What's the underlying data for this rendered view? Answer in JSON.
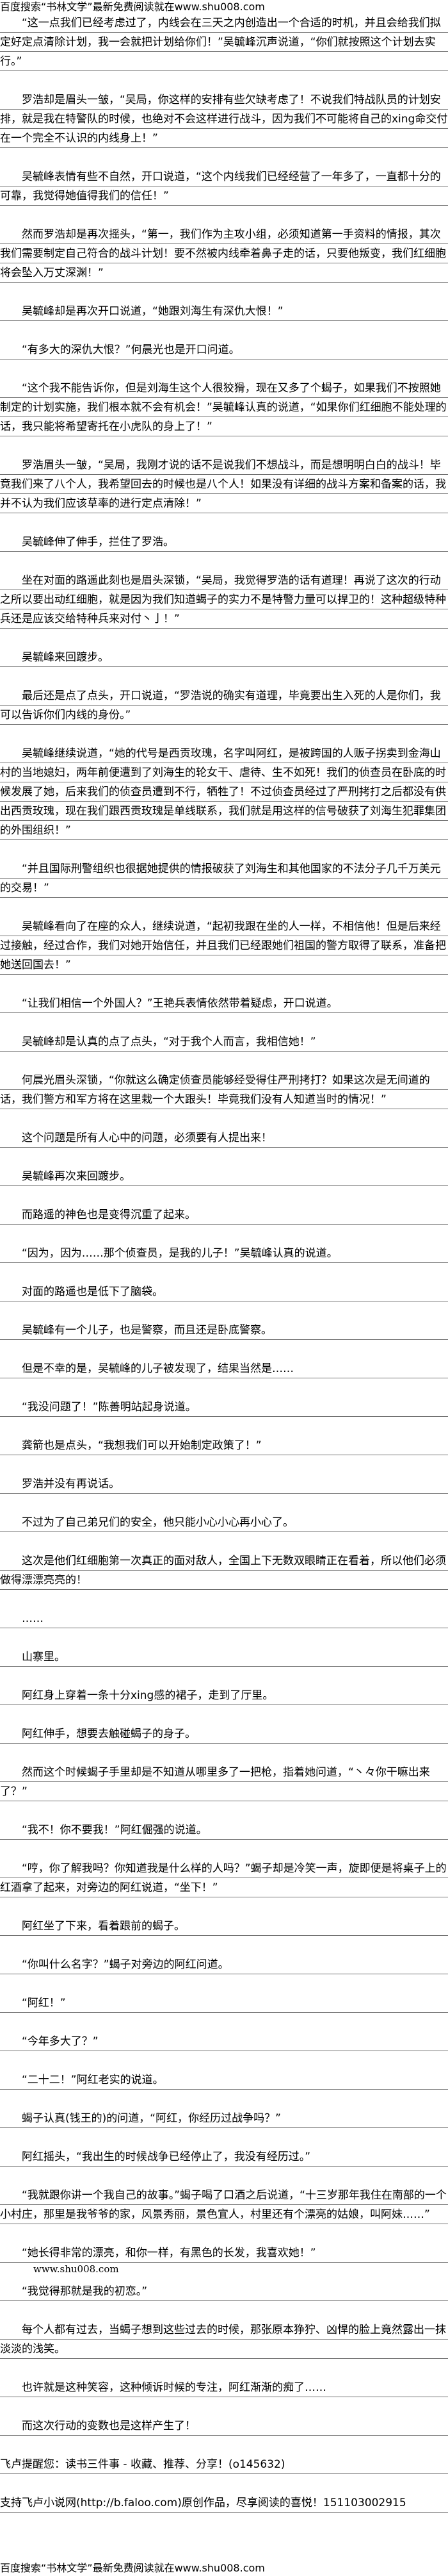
{
  "header": {
    "text": "百度搜索“书林文学”最新免费阅读就在www.shu008.com"
  },
  "paragraphs": [
    "“这一点我们已经考虑过了，内线会在三天之内创造出一个合适的时机，并且会给我们拟定好定点清除计划，我一会就把计划给你们！”吴毓峰沉声说道，“你们就按照这个计划去实行。”",
    "罗浩却是眉头一皱，“吴局，你这样的安排有些欠缺考虑了！不说我们特战队员的计划安排，就是我在特警队的时候，也绝对不会这样进行战斗，因为我们不可能将自己的xing命交付在一个完全不认识的内线身上！”",
    "吴毓峰表情有些不自然，开口说道，“这个内线我们已经经营了一年多了，一直都十分的可靠，我觉得她值得我们的信任！”",
    "然而罗浩却是再次摇头，“第一，我们作为主攻小组，必须知道第一手资料的情报，其次我们需要制定自己符合的战斗计划！要不然被内线牵着鼻子走的话，只要他叛变，我们红细胞将会坠入万丈深渊！”",
    "吴毓峰却是再次开口说道，“她跟刘海生有深仇大恨！”",
    "“有多大的深仇大恨？”何晨光也是开口问道。",
    "“这个我不能告诉你，但是刘海生这个人很狡猾，现在又多了个蝎子，如果我们不按照她制定的计划实施，我们根本就不会有机会！”吴毓峰认真的说道，“如果你们红细胞不能处理的话，我只能将希望寄托在小虎队的身上了！”",
    "罗浩眉头一皱，“吴局，我刚才说的话不是说我们不想战斗，而是想明明白白的战斗！毕竟我们来了八个人，我希望回去的时候也是八个人！如果没有详细的战斗方案和备案的话，我并不认为我们应该草率的进行定点清除！”",
    "吴毓峰伸了伸手，拦住了罗浩。",
    "坐在对面的路遥此刻也是眉头深锁，“吴局，我觉得罗浩的话有道理！再说了这次的行动之所以要出动红细胞，就是因为我们知道蝎子的实力不是特警力量可以捍卫的！这种超级特种兵还是应该交给特种兵来对付丶亅！”",
    "吴毓峰来回踱步。",
    "最后还是点了点头，开口说道，“罗浩说的确实有道理，毕竟要出生入死的人是你们，我可以告诉你们内线的身份。”",
    "吴毓峰继续说道，“她的代号是西贡玫瑰，名字叫阿红，是被跨国的人贩子拐卖到金海山村的当地媳妇，两年前便遭到了刘海生的轮女干、虐待、生不如死！我们的侦查员在卧底的时候发展了她，后来我们的侦查员遭到不行，牺牲了！不过侦查员经过了严刑拷打之后都没有供出西贡玫瑰，现在我们跟西贡玫瑰是单线联系，我们就是用这样的信号破获了刘海生犯罪集团的外围组织！”",
    "“并且国际刑警组织也很据她提供的情报破获了刘海生和其他国家的不法分子几千万美元的交易！”",
    "吴毓峰看向了在座的众人，继续说道，“起初我跟在坐的人一样，不相信他！但是后来经过接触，经过合作，我们对她开始信任，并且我们已经跟她们祖国的警方取得了联系，准备把她送回国去！”",
    "“让我们相信一个外国人？”王艳兵表情依然带着疑虑，开口说道。",
    "吴毓峰却是认真的点了点头，“对于我个人而言，我相信她！”",
    "何晨光眉头深锁，“你就这么确定侦查员能够经受得住严刑拷打？如果这次是无间道的话，我们警方和军方将在这里栽一个大跟头！毕竟我们没有人知道当时的情况！”",
    "这个问题是所有人心中的问题，必须要有人提出来！",
    "吴毓峰再次来回踱步。",
    "而路遥的神色也是变得沉重了起来。",
    "“因为，因为……那个侦查员，是我的儿子！”吴毓峰认真的说道。",
    "对面的路遥也是低下了脑袋。",
    "吴毓峰有一个儿子，也是警察，而且还是卧底警察。",
    "但是不幸的是，吴毓峰的儿子被发现了，结果当然是……",
    "“我没问题了！”陈善明站起身说道。",
    "龚箭也是点头，“我想我们可以开始制定政策了！”",
    "罗浩并没有再说话。",
    "不过为了自己弟兄们的安全，他只能小心小心再小心了。",
    "这次是他们红细胞第一次真正的面对敌人，全国上下无数双眼睛正在看着，所以他们必须做得漂漂亮亮的！",
    "……",
    "山寨里。",
    "阿红身上穿着一条十分xing感的裙子，走到了厅里。",
    "阿红伸手，想要去触碰蝎子的身子。",
    "然而这个时候蝎子手里却是不知道从哪里多了一把枪，指着她问道，“丶々你干嘛出来了？”",
    "“我不！你不要我！”阿红倔强的说道。",
    "“哼，你了解我吗？你知道我是什么样的人吗？”蝎子却是冷笑一声，旋即便是将桌子上的红酒拿了起来，对旁边的阿红说道，“坐下！”",
    "阿红坐了下来，看着跟前的蝎子。",
    "“你叫什么名字？”蝎子对旁边的阿红问道。",
    "“阿红！”",
    "“今年多大了？”",
    "“二十二！”阿红老实的说道。",
    "蝎子认真(钱王的)的问道，“阿红，你经历过战争吗？”",
    "阿红摇头，“我出生的时候战争已经停止了，我没有经历过。”",
    "“我就跟你讲一个我自己的故事。”蝎子喝了口酒之后说道，“十三岁那年我住在南部的一个小村庄，那里是我爷爷的家，风景秀丽，景色宜人，村里还有个漂亮的姑娘，叫阿妹……”",
    "“她长得非常的漂亮，和你一样，有黑色的长发，我喜欢她！”",
    "“我觉得那就是我的初恋。”",
    "每个人都有过去，当蝎子想到这些过去的时候，那张原本狰狞、凶悍的脸上竟然露出一抹淡淡的浅笑。",
    "也许就是这种笑容，这种倾诉时候的专注，阿红渐渐的痴了……",
    "而这次行动的变数也是这样产生了！"
  ],
  "watermark": {
    "text": "www.shu008.com"
  },
  "footer": {
    "reminder": "飞卢提醒您：读书三件事 - 收藏、推荐、分享！(o145632)",
    "support": "支持飞卢小说网(http://b.faloo.com)原创作品，尽享阅读的喜悦！151103002915",
    "bottom_header": "百度搜索“书林文学”最新免费阅读就在www.shu008.com"
  },
  "colors": {
    "rule_line": "#6e6e6e",
    "text": "#000000",
    "background": "#ffffff"
  }
}
